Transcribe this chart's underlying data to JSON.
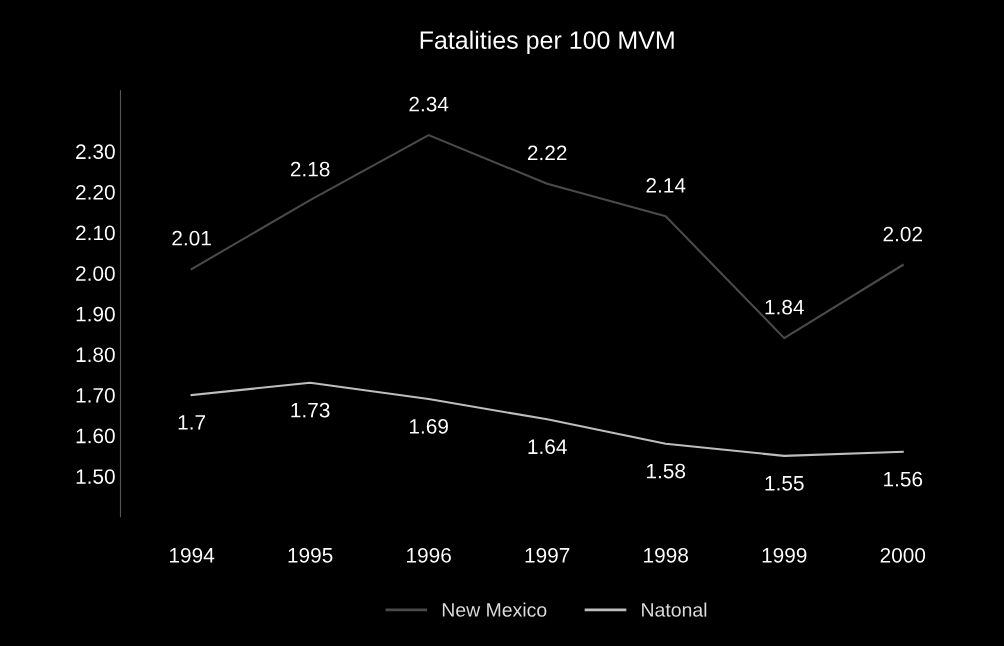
{
  "chart_data": {
    "type": "line",
    "title": "Fatalities per 100 MVM",
    "categories": [
      "1994",
      "1995",
      "1996",
      "1997",
      "1998",
      "1999",
      "2000"
    ],
    "series": [
      {
        "name": "New Mexico",
        "color": "#4a4a4a",
        "values": [
          2.01,
          2.18,
          2.34,
          2.22,
          2.14,
          1.84,
          2.02
        ]
      },
      {
        "name": "Natonal",
        "color": "#bdbdbd",
        "values": [
          1.7,
          1.73,
          1.69,
          1.64,
          1.58,
          1.55,
          1.56
        ]
      }
    ],
    "ylim": [
      1.4,
      2.45
    ],
    "yticks": [
      {
        "value": 1.5,
        "label": "1.50"
      },
      {
        "value": 1.6,
        "label": "1.60"
      },
      {
        "value": 1.7,
        "label": "1.70"
      },
      {
        "value": 1.8,
        "label": "1.80"
      },
      {
        "value": 1.9,
        "label": "1.90"
      },
      {
        "value": 2.0,
        "label": "2.00"
      },
      {
        "value": 2.1,
        "label": "2.10"
      },
      {
        "value": 2.2,
        "label": "2.20"
      },
      {
        "value": 2.3,
        "label": "2.30"
      }
    ],
    "data_labels": true,
    "legend": "bottom",
    "grid": false,
    "marker": "none",
    "line_style": "solid"
  }
}
